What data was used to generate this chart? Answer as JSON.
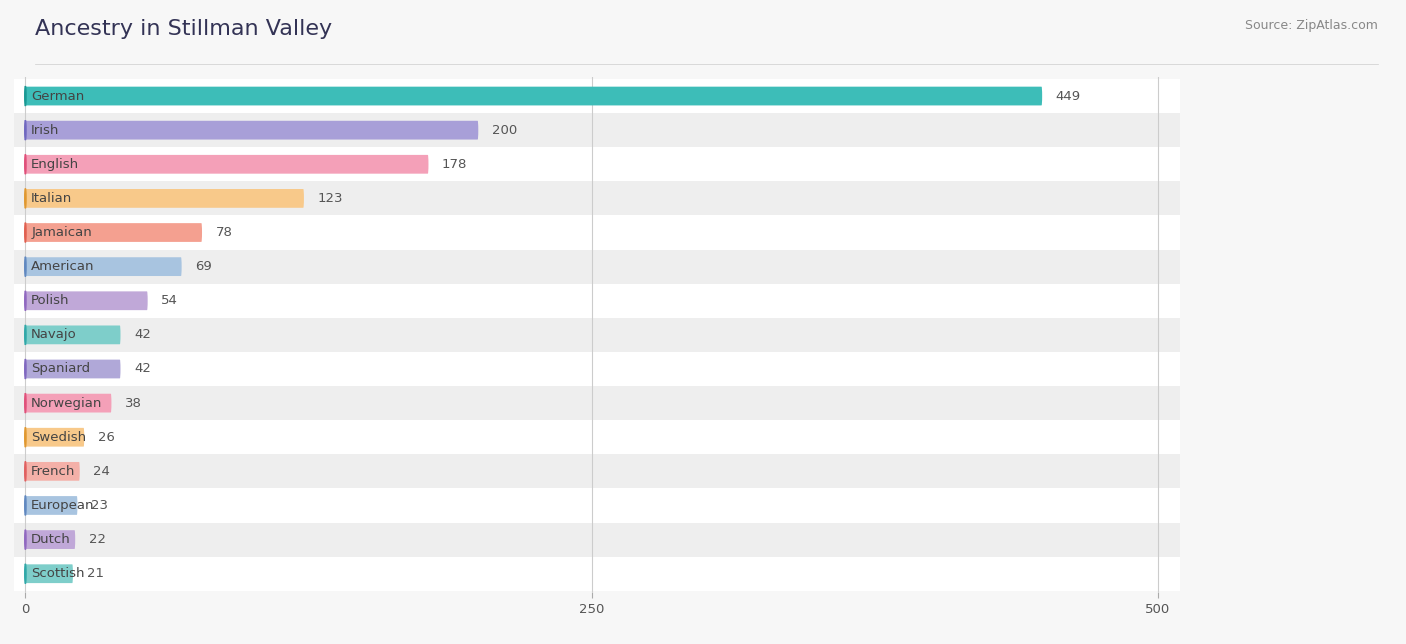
{
  "title": "Ancestry in Stillman Valley",
  "source": "Source: ZipAtlas.com",
  "categories": [
    "German",
    "Irish",
    "English",
    "Italian",
    "Jamaican",
    "American",
    "Polish",
    "Navajo",
    "Spaniard",
    "Norwegian",
    "Swedish",
    "French",
    "European",
    "Dutch",
    "Scottish"
  ],
  "values": [
    449,
    200,
    178,
    123,
    78,
    69,
    54,
    42,
    42,
    38,
    26,
    24,
    23,
    22,
    21
  ],
  "bar_colors": [
    "#3dbdb8",
    "#a89fd8",
    "#f4a0b8",
    "#f8c98a",
    "#f4a090",
    "#a8c4e0",
    "#c0a8d8",
    "#7ececa",
    "#b0a8d8",
    "#f4a0b8",
    "#f8c98a",
    "#f4b0a8",
    "#a8c4e0",
    "#c0a8d8",
    "#7ececa"
  ],
  "icon_colors": [
    "#1a9994",
    "#7068c0",
    "#e0507a",
    "#e09830",
    "#e06050",
    "#6088c0",
    "#9068c0",
    "#30a8a8",
    "#8068c0",
    "#e0507a",
    "#e09830",
    "#e06060",
    "#6088c0",
    "#9068c0",
    "#30a8a8"
  ],
  "xlim": [
    0,
    500
  ],
  "xticks": [
    0,
    250,
    500
  ],
  "background_color": "#f7f7f7",
  "row_bg_even": "#ffffff",
  "row_bg_odd": "#eeeeee",
  "title_fontsize": 16,
  "source_fontsize": 9,
  "label_fontsize": 9.5,
  "value_fontsize": 9.5
}
